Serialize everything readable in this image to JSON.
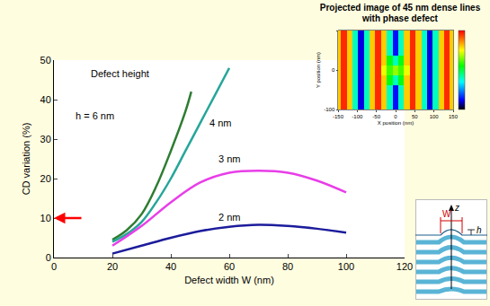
{
  "chart_data": [
    {
      "type": "line",
      "x_label": "Defect width W (nm)",
      "y_label": "CD variation (%)",
      "xlim": [
        0,
        120
      ],
      "xticks": [
        0,
        20,
        40,
        60,
        80,
        100,
        120
      ],
      "ylim": [
        0,
        50
      ],
      "yticks": [
        0,
        10,
        20,
        30,
        40,
        50
      ],
      "grid": false,
      "series": [
        {
          "name": "h = 6 nm",
          "color": "#2e7d32",
          "x": [
            20,
            25,
            30,
            35,
            40,
            45,
            47
          ],
          "values": [
            4.5,
            7,
            11,
            18,
            27,
            37,
            42
          ],
          "label_at": [
            14,
            36
          ]
        },
        {
          "name": "4 nm",
          "color": "#26a69a",
          "x": [
            20,
            25,
            30,
            35,
            40,
            45,
            50,
            55,
            60
          ],
          "values": [
            4,
            6,
            9,
            14,
            20,
            27,
            34,
            41,
            48
          ],
          "label_at": [
            57,
            34
          ]
        },
        {
          "name": "3 nm",
          "color": "#e83ee8",
          "x": [
            20,
            30,
            40,
            50,
            60,
            70,
            80,
            90,
            100
          ],
          "values": [
            3,
            8,
            14,
            19,
            21.5,
            22,
            21.5,
            19.5,
            16.5
          ],
          "label_at": [
            60,
            25
          ]
        },
        {
          "name": "2 nm",
          "color": "#1c1c9c",
          "x": [
            20,
            30,
            40,
            50,
            60,
            70,
            80,
            90,
            100
          ],
          "values": [
            1,
            3,
            5,
            6.7,
            7.8,
            8.3,
            8,
            7.3,
            6.3
          ],
          "label_at": [
            60,
            10.3
          ]
        }
      ],
      "annotations": [
        {
          "text": "Defect height",
          "x": 22.5,
          "y": 46.5
        }
      ],
      "arrow": {
        "y": 10,
        "color": "#ff0000"
      }
    },
    {
      "type": "heatmap",
      "title": "Projected image of 45 nm dense lines with phase defect",
      "x_label": "X position (nm)",
      "y_label": "Y position (nm)",
      "xlim": [
        -150,
        150
      ],
      "xticks": [
        -150,
        -100,
        -50,
        0,
        50,
        100,
        150
      ],
      "ylim": [
        -100,
        100
      ],
      "yticks": [
        -100,
        0,
        100
      ],
      "x": [
        -150,
        -135,
        -120,
        -105,
        -90,
        -75,
        -60,
        -45,
        -30,
        -15,
        0,
        15,
        30,
        45,
        60,
        75,
        90,
        105,
        120,
        135,
        150
      ],
      "y": [
        -100,
        -75,
        -50,
        -25,
        0,
        25,
        50,
        75,
        100
      ],
      "cells": [
        [
          0.6,
          0.72,
          0.6,
          0.3,
          0.08,
          0.3,
          0.6,
          0.72,
          0.6,
          0.3,
          0.1,
          0.3,
          0.6,
          0.72,
          0.6,
          0.3,
          0.08,
          0.3,
          0.6,
          0.72,
          0.6
        ],
        [
          0.6,
          0.72,
          0.6,
          0.3,
          0.08,
          0.3,
          0.6,
          0.72,
          0.6,
          0.3,
          0.1,
          0.3,
          0.6,
          0.72,
          0.6,
          0.3,
          0.08,
          0.3,
          0.6,
          0.72,
          0.6
        ],
        [
          0.6,
          0.72,
          0.6,
          0.3,
          0.08,
          0.3,
          0.6,
          0.72,
          0.6,
          0.3,
          0.1,
          0.3,
          0.6,
          0.72,
          0.6,
          0.3,
          0.08,
          0.3,
          0.6,
          0.72,
          0.6
        ],
        [
          0.6,
          0.72,
          0.6,
          0.3,
          0.08,
          0.3,
          0.6,
          0.72,
          0.6,
          0.4,
          0.3,
          0.4,
          0.6,
          0.72,
          0.6,
          0.3,
          0.08,
          0.3,
          0.6,
          0.72,
          0.6
        ],
        [
          0.6,
          0.72,
          0.6,
          0.3,
          0.08,
          0.3,
          0.6,
          0.72,
          0.55,
          0.45,
          0.5,
          0.45,
          0.55,
          0.72,
          0.6,
          0.3,
          0.08,
          0.3,
          0.6,
          0.72,
          0.6
        ],
        [
          0.6,
          0.72,
          0.6,
          0.3,
          0.08,
          0.3,
          0.6,
          0.72,
          0.6,
          0.4,
          0.3,
          0.4,
          0.6,
          0.72,
          0.6,
          0.3,
          0.08,
          0.3,
          0.6,
          0.72,
          0.6
        ],
        [
          0.6,
          0.72,
          0.6,
          0.3,
          0.08,
          0.3,
          0.6,
          0.72,
          0.6,
          0.3,
          0.1,
          0.3,
          0.6,
          0.72,
          0.6,
          0.3,
          0.08,
          0.3,
          0.6,
          0.72,
          0.6
        ],
        [
          0.6,
          0.72,
          0.6,
          0.3,
          0.08,
          0.3,
          0.6,
          0.72,
          0.6,
          0.3,
          0.1,
          0.3,
          0.6,
          0.72,
          0.6,
          0.3,
          0.08,
          0.3,
          0.6,
          0.72,
          0.6
        ],
        [
          0.6,
          0.72,
          0.6,
          0.3,
          0.08,
          0.3,
          0.6,
          0.72,
          0.6,
          0.3,
          0.1,
          0.3,
          0.6,
          0.72,
          0.6,
          0.3,
          0.08,
          0.3,
          0.6,
          0.72,
          0.6
        ]
      ],
      "color_range": [
        0,
        0.75
      ]
    }
  ],
  "diagram": {
    "labels": {
      "W": "W",
      "z": "z",
      "h": "h"
    }
  }
}
